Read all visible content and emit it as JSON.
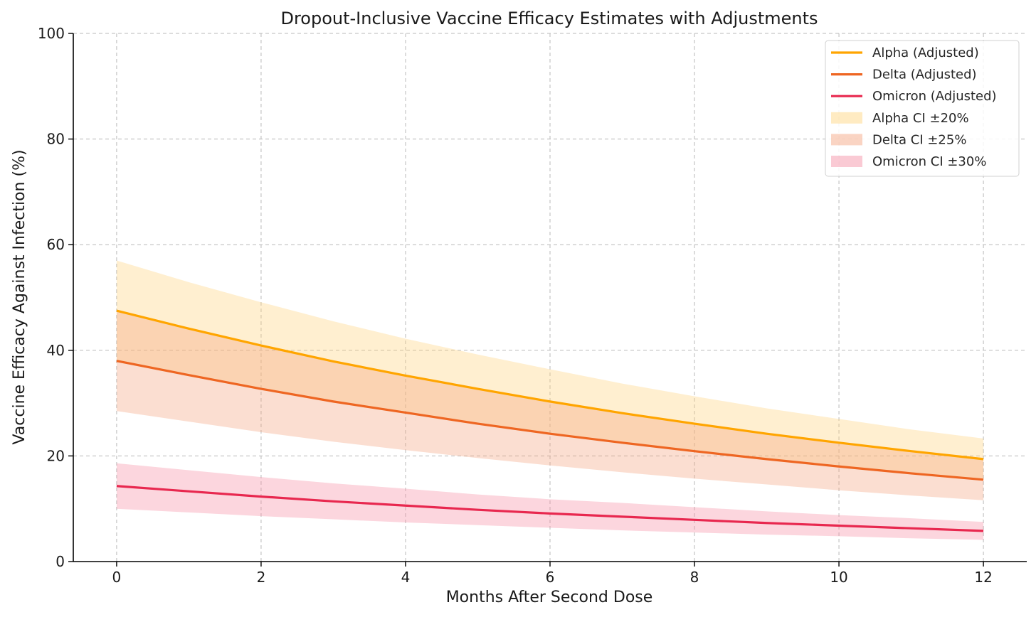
{
  "chart_data": {
    "type": "line",
    "title": "Dropout-Inclusive Vaccine Efficacy Estimates with Adjustments",
    "xlabel": "Months After Second Dose",
    "ylabel": "Vaccine Efficacy Against Infection (%)",
    "xlim": [
      -0.6,
      12.6
    ],
    "ylim": [
      0,
      100
    ],
    "xticks": [
      0,
      2,
      4,
      6,
      8,
      10,
      12
    ],
    "yticks": [
      0,
      20,
      40,
      60,
      80,
      100
    ],
    "grid": true,
    "legend_position": "top-right",
    "x": [
      0,
      1,
      2,
      3,
      4,
      5,
      6,
      7,
      8,
      9,
      10,
      11,
      12
    ],
    "series": [
      {
        "name": "Alpha (Adjusted)",
        "color": "#FFA500",
        "values": [
          47.5,
          44.1,
          40.9,
          37.9,
          35.2,
          32.7,
          30.3,
          28.1,
          26.1,
          24.2,
          22.5,
          20.9,
          19.4
        ]
      },
      {
        "name": "Delta (Adjusted)",
        "color": "#EE6622",
        "values": [
          38.0,
          35.3,
          32.7,
          30.3,
          28.2,
          26.1,
          24.2,
          22.5,
          20.9,
          19.4,
          18.0,
          16.7,
          15.5
        ]
      },
      {
        "name": "Omicron (Adjusted)",
        "color": "#E8284F",
        "values": [
          14.3,
          13.3,
          12.3,
          11.4,
          10.6,
          9.8,
          9.1,
          8.5,
          7.9,
          7.3,
          6.8,
          6.3,
          5.8
        ]
      }
    ],
    "bands": [
      {
        "name": "Alpha CI ±20%",
        "color": "#FFD277",
        "opacity": 0.35,
        "lower": [
          38.0,
          35.3,
          32.7,
          30.3,
          28.2,
          26.1,
          24.2,
          22.5,
          20.9,
          19.4,
          18.0,
          16.7,
          15.5
        ],
        "upper": [
          57.0,
          52.9,
          49.1,
          45.5,
          42.2,
          39.2,
          36.4,
          33.7,
          31.3,
          29.0,
          27.0,
          25.0,
          23.3
        ]
      },
      {
        "name": "Delta CI ±25%",
        "color": "#F3A07A",
        "opacity": 0.35,
        "lower": [
          28.5,
          26.5,
          24.5,
          22.7,
          21.1,
          19.6,
          18.2,
          16.9,
          15.7,
          14.6,
          13.5,
          12.5,
          11.6
        ],
        "upper": [
          47.5,
          44.1,
          40.9,
          37.9,
          35.2,
          32.7,
          30.3,
          28.1,
          26.1,
          24.2,
          22.5,
          20.9,
          19.4
        ]
      },
      {
        "name": "Omicron CI ±30%",
        "color": "#F58AA0",
        "opacity": 0.35,
        "lower": [
          10.0,
          9.3,
          8.6,
          8.0,
          7.4,
          6.9,
          6.4,
          5.9,
          5.5,
          5.1,
          4.8,
          4.4,
          4.1
        ],
        "upper": [
          18.6,
          17.3,
          16.0,
          14.8,
          13.8,
          12.7,
          11.8,
          11.1,
          10.3,
          9.5,
          8.8,
          8.2,
          7.5
        ]
      }
    ]
  }
}
